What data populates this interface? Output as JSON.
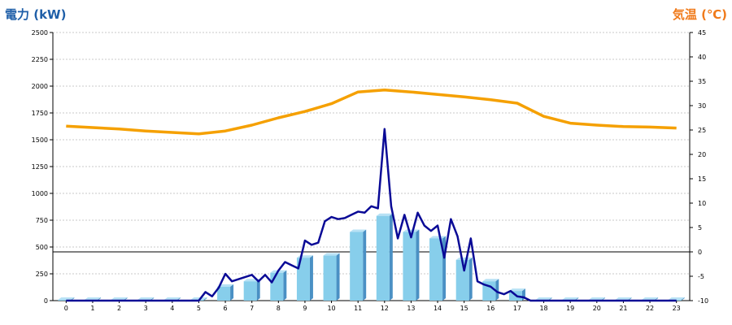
{
  "chart_data": {
    "type": "bar+line",
    "left_axis_title": "電力 (kW)",
    "right_axis_title": "気温 (℃)",
    "left_ylim": [
      0,
      2500
    ],
    "left_yticks": [
      0,
      250,
      500,
      750,
      1000,
      1250,
      1500,
      1750,
      2000,
      2250,
      2500
    ],
    "right_ylim": [
      -10,
      45
    ],
    "right_yticks": [
      -10,
      -5,
      0,
      5,
      10,
      15,
      20,
      25,
      30,
      35,
      40,
      45
    ],
    "categories": [
      "0",
      "1",
      "2",
      "3",
      "4",
      "5",
      "6",
      "7",
      "8",
      "9",
      "10",
      "11",
      "12",
      "13",
      "14",
      "15",
      "16",
      "17",
      "18",
      "19",
      "20",
      "21",
      "22",
      "23"
    ],
    "grid": "dashed horizontal",
    "reference_line": {
      "axis": "right",
      "value": 0
    },
    "bar_series": {
      "axis": "left",
      "color": "#87ceeb",
      "values": [
        0,
        0,
        0,
        0,
        0,
        0,
        130,
        180,
        260,
        400,
        420,
        640,
        790,
        640,
        580,
        380,
        180,
        90,
        0,
        0,
        0,
        0,
        0,
        0
      ]
    },
    "power_series": {
      "axis": "left",
      "color": "#0a0a96",
      "x": [
        0,
        0.5,
        1,
        1.5,
        2,
        2.5,
        3,
        3.5,
        4,
        4.5,
        5,
        5.25,
        5.5,
        5.75,
        6,
        6.25,
        6.5,
        6.75,
        7,
        7.25,
        7.5,
        7.75,
        8,
        8.25,
        8.5,
        8.75,
        9,
        9.25,
        9.5,
        9.75,
        10,
        10.25,
        10.5,
        10.75,
        11,
        11.25,
        11.5,
        11.75,
        12,
        12.25,
        12.5,
        12.75,
        13,
        13.25,
        13.5,
        13.75,
        14,
        14.25,
        14.5,
        14.75,
        15,
        15.25,
        15.5,
        15.75,
        16,
        16.25,
        16.5,
        16.75,
        17,
        17.25,
        17.5,
        18,
        19,
        20,
        21,
        22,
        23
      ],
      "values": [
        0,
        0,
        0,
        0,
        0,
        0,
        0,
        0,
        0,
        0,
        0,
        80,
        40,
        120,
        250,
        180,
        200,
        220,
        240,
        180,
        240,
        170,
        280,
        360,
        330,
        300,
        560,
        520,
        540,
        740,
        780,
        760,
        770,
        800,
        830,
        820,
        880,
        860,
        1600,
        880,
        580,
        800,
        590,
        820,
        700,
        650,
        700,
        400,
        760,
        600,
        280,
        580,
        180,
        150,
        130,
        80,
        60,
        90,
        40,
        30,
        0,
        0,
        0,
        0,
        0,
        0,
        0
      ]
    },
    "temperature_series": {
      "axis": "right",
      "color": "#f5a000",
      "x": [
        0,
        1,
        2,
        3,
        4,
        5,
        6,
        7,
        8,
        9,
        10,
        11,
        12,
        13,
        14,
        15,
        16,
        17,
        18,
        19,
        20,
        21,
        22,
        23
      ],
      "values": [
        25.8,
        25.5,
        25.2,
        24.8,
        24.5,
        24.2,
        24.8,
        26,
        27.5,
        28.8,
        30.4,
        32.8,
        33.2,
        32.8,
        32.3,
        31.8,
        31.2,
        30.5,
        27.8,
        26.4,
        26,
        25.7,
        25.6,
        25.4
      ]
    }
  }
}
